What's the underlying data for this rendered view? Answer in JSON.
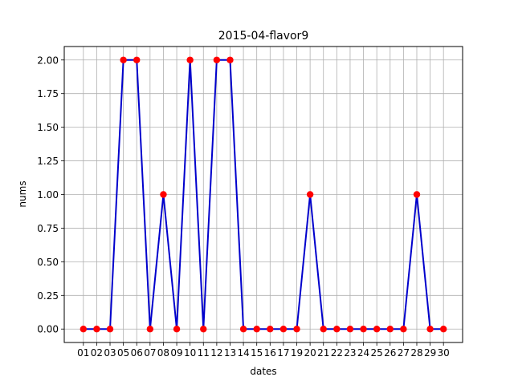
{
  "chart_data": {
    "type": "line",
    "title": "2015-04-flavor9",
    "xlabel": "dates",
    "ylabel": "nums",
    "categories": [
      "01",
      "02",
      "03",
      "05",
      "06",
      "07",
      "08",
      "09",
      "10",
      "11",
      "12",
      "13",
      "14",
      "15",
      "16",
      "17",
      "19",
      "20",
      "21",
      "22",
      "23",
      "24",
      "25",
      "26",
      "27",
      "28",
      "29",
      "30"
    ],
    "series": [
      {
        "values": [
          0,
          0,
          0,
          2,
          2,
          0,
          1,
          0,
          2,
          0,
          2,
          2,
          0,
          0,
          0,
          0,
          0,
          1,
          0,
          0,
          0,
          0,
          0,
          0,
          0,
          1,
          0,
          0
        ]
      }
    ],
    "ylim": [
      -0.1,
      2.1
    ],
    "yticks": [
      0.0,
      0.25,
      0.5,
      0.75,
      1.0,
      1.25,
      1.5,
      1.75,
      2.0
    ],
    "ytick_labels": [
      "0.00",
      "0.25",
      "0.50",
      "0.75",
      "1.00",
      "1.25",
      "1.50",
      "1.75",
      "2.00"
    ],
    "grid": true,
    "colors": {
      "line": "#0000cc",
      "marker": "#ff0000",
      "grid": "#b0b0b0",
      "frame": "#000000"
    }
  }
}
